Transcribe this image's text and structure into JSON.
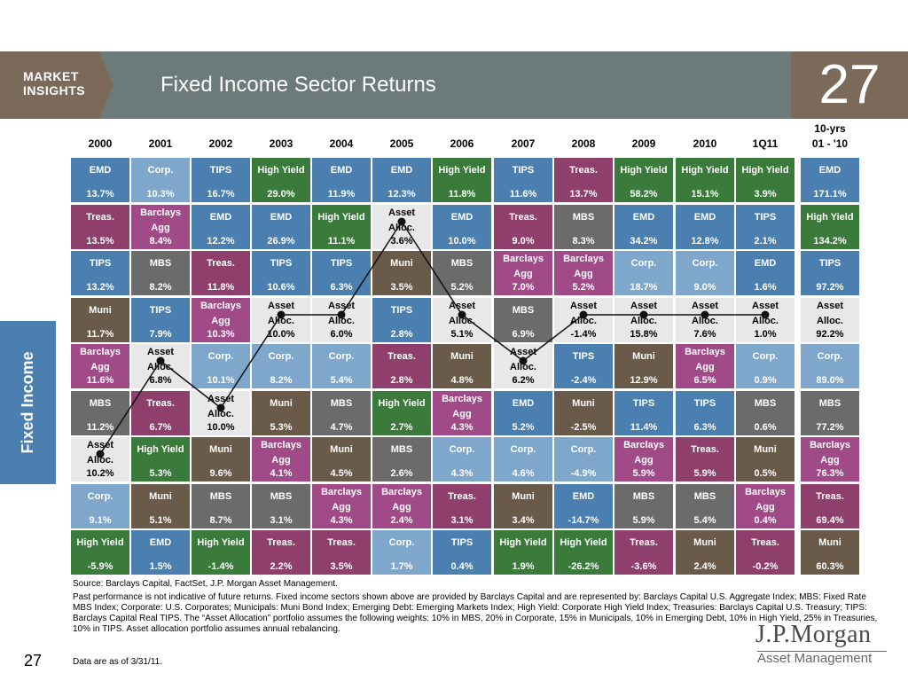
{
  "header": {
    "brand": "MARKET\nINSIGHTS",
    "title": "Fixed Income Sector Returns",
    "page_number": "27"
  },
  "sidebar": {
    "label": "Fixed Income"
  },
  "colors": {
    "EMD": "#4a7fb0",
    "Corp.": "#7fa7cc",
    "TIPS": "#4a7fb0",
    "High Yield": "#3a7a3a",
    "Treas.": "#8e3f6c",
    "Barclays Agg": "#a04a88",
    "MBS": "#6b6b6b",
    "Muni": "#6a5a4a",
    "Asset Alloc.": "#e8e8e8"
  },
  "chart_data": {
    "type": "table",
    "title": "Fixed Income Sector Returns",
    "columns": [
      "2000",
      "2001",
      "2002",
      "2003",
      "2004",
      "2005",
      "2006",
      "2007",
      "2008",
      "2009",
      "2010",
      "1Q11",
      "10-yrs\n01 - '10"
    ],
    "ranks": [
      [
        {
          "s": "EMD",
          "v": "13.7%"
        },
        {
          "s": "Corp.",
          "v": "10.3%"
        },
        {
          "s": "TIPS",
          "v": "16.7%"
        },
        {
          "s": "High Yield",
          "v": "29.0%"
        },
        {
          "s": "EMD",
          "v": "11.9%"
        },
        {
          "s": "EMD",
          "v": "12.3%"
        },
        {
          "s": "High Yield",
          "v": "11.8%"
        },
        {
          "s": "TIPS",
          "v": "11.6%"
        },
        {
          "s": "Treas.",
          "v": "13.7%"
        },
        {
          "s": "High Yield",
          "v": "58.2%"
        },
        {
          "s": "High Yield",
          "v": "15.1%"
        },
        {
          "s": "High Yield",
          "v": "3.9%"
        },
        {
          "s": "EMD",
          "v": "171.1%"
        }
      ],
      [
        {
          "s": "Treas.",
          "v": "13.5%"
        },
        {
          "s": "Barclays Agg",
          "v": "8.4%"
        },
        {
          "s": "EMD",
          "v": "12.2%"
        },
        {
          "s": "EMD",
          "v": "26.9%"
        },
        {
          "s": "High Yield",
          "v": "11.1%"
        },
        {
          "s": "Asset Alloc.",
          "v": "3.6%"
        },
        {
          "s": "EMD",
          "v": "10.0%"
        },
        {
          "s": "Treas.",
          "v": "9.0%"
        },
        {
          "s": "MBS",
          "v": "8.3%"
        },
        {
          "s": "EMD",
          "v": "34.2%"
        },
        {
          "s": "EMD",
          "v": "12.8%"
        },
        {
          "s": "TIPS",
          "v": "2.1%"
        },
        {
          "s": "High Yield",
          "v": "134.2%"
        }
      ],
      [
        {
          "s": "TIPS",
          "v": "13.2%"
        },
        {
          "s": "MBS",
          "v": "8.2%"
        },
        {
          "s": "Treas.",
          "v": "11.8%"
        },
        {
          "s": "TIPS",
          "v": "10.6%"
        },
        {
          "s": "TIPS",
          "v": "6.3%"
        },
        {
          "s": "Muni",
          "v": "3.5%"
        },
        {
          "s": "MBS",
          "v": "5.2%"
        },
        {
          "s": "Barclays Agg",
          "v": "7.0%"
        },
        {
          "s": "Barclays Agg",
          "v": "5.2%"
        },
        {
          "s": "Corp.",
          "v": "18.7%"
        },
        {
          "s": "Corp.",
          "v": "9.0%"
        },
        {
          "s": "EMD",
          "v": "1.6%"
        },
        {
          "s": "TIPS",
          "v": "97.2%"
        }
      ],
      [
        {
          "s": "Muni",
          "v": "11.7%"
        },
        {
          "s": "TIPS",
          "v": "7.9%"
        },
        {
          "s": "Barclays Agg",
          "v": "10.3%"
        },
        {
          "s": "Asset Alloc.",
          "v": "10.0%"
        },
        {
          "s": "Asset Alloc.",
          "v": "6.0%"
        },
        {
          "s": "TIPS",
          "v": "2.8%"
        },
        {
          "s": "Asset Alloc.",
          "v": "5.1%"
        },
        {
          "s": "MBS",
          "v": "6.9%"
        },
        {
          "s": "Asset Alloc.",
          "v": "-1.4%"
        },
        {
          "s": "Asset Alloc.",
          "v": "15.8%"
        },
        {
          "s": "Asset Alloc.",
          "v": "7.6%"
        },
        {
          "s": "Asset Alloc.",
          "v": "1.0%"
        },
        {
          "s": "Asset Alloc.",
          "v": "92.2%"
        }
      ],
      [
        {
          "s": "Barclays Agg",
          "v": "11.6%"
        },
        {
          "s": "Asset Alloc.",
          "v": "6.8%"
        },
        {
          "s": "Corp.",
          "v": "10.1%"
        },
        {
          "s": "Corp.",
          "v": "8.2%"
        },
        {
          "s": "Corp.",
          "v": "5.4%"
        },
        {
          "s": "Treas.",
          "v": "2.8%"
        },
        {
          "s": "Muni",
          "v": "4.8%"
        },
        {
          "s": "Asset Alloc.",
          "v": "6.2%"
        },
        {
          "s": "TIPS",
          "v": "-2.4%"
        },
        {
          "s": "Muni",
          "v": "12.9%"
        },
        {
          "s": "Barclays Agg",
          "v": "6.5%"
        },
        {
          "s": "Corp.",
          "v": "0.9%"
        },
        {
          "s": "Corp.",
          "v": "89.0%"
        }
      ],
      [
        {
          "s": "MBS",
          "v": "11.2%"
        },
        {
          "s": "Treas.",
          "v": "6.7%"
        },
        {
          "s": "Asset Alloc.",
          "v": "10.0%"
        },
        {
          "s": "Muni",
          "v": "5.3%"
        },
        {
          "s": "MBS",
          "v": "4.7%"
        },
        {
          "s": "High Yield",
          "v": "2.7%"
        },
        {
          "s": "Barclays Agg",
          "v": "4.3%"
        },
        {
          "s": "EMD",
          "v": "5.2%"
        },
        {
          "s": "Muni",
          "v": "-2.5%"
        },
        {
          "s": "TIPS",
          "v": "11.4%"
        },
        {
          "s": "TIPS",
          "v": "6.3%"
        },
        {
          "s": "MBS",
          "v": "0.6%"
        },
        {
          "s": "MBS",
          "v": "77.2%"
        }
      ],
      [
        {
          "s": "Asset Alloc.",
          "v": "10.2%"
        },
        {
          "s": "High Yield",
          "v": "5.3%"
        },
        {
          "s": "Muni",
          "v": "9.6%"
        },
        {
          "s": "Barclays Agg",
          "v": "4.1%"
        },
        {
          "s": "Muni",
          "v": "4.5%"
        },
        {
          "s": "MBS",
          "v": "2.6%"
        },
        {
          "s": "Corp.",
          "v": "4.3%"
        },
        {
          "s": "Corp.",
          "v": "4.6%"
        },
        {
          "s": "Corp.",
          "v": "-4.9%"
        },
        {
          "s": "Barclays Agg",
          "v": "5.9%"
        },
        {
          "s": "Treas.",
          "v": "5.9%"
        },
        {
          "s": "Muni",
          "v": "0.5%"
        },
        {
          "s": "Barclays Agg",
          "v": "76.3%"
        }
      ],
      [
        {
          "s": "Corp.",
          "v": "9.1%"
        },
        {
          "s": "Muni",
          "v": "5.1%"
        },
        {
          "s": "MBS",
          "v": "8.7%"
        },
        {
          "s": "MBS",
          "v": "3.1%"
        },
        {
          "s": "Barclays Agg",
          "v": "4.3%"
        },
        {
          "s": "Barclays Agg",
          "v": "2.4%"
        },
        {
          "s": "Treas.",
          "v": "3.1%"
        },
        {
          "s": "Muni",
          "v": "3.4%"
        },
        {
          "s": "EMD",
          "v": "-14.7%"
        },
        {
          "s": "MBS",
          "v": "5.9%"
        },
        {
          "s": "MBS",
          "v": "5.4%"
        },
        {
          "s": "Barclays Agg",
          "v": "0.4%"
        },
        {
          "s": "Treas.",
          "v": "69.4%"
        }
      ],
      [
        {
          "s": "High Yield",
          "v": "-5.9%"
        },
        {
          "s": "EMD",
          "v": "1.5%"
        },
        {
          "s": "High Yield",
          "v": "-1.4%"
        },
        {
          "s": "Treas.",
          "v": "2.2%"
        },
        {
          "s": "Treas.",
          "v": "3.5%"
        },
        {
          "s": "Corp.",
          "v": "1.7%"
        },
        {
          "s": "TIPS",
          "v": "0.4%"
        },
        {
          "s": "High Yield",
          "v": "1.9%"
        },
        {
          "s": "High Yield",
          "v": "-26.2%"
        },
        {
          "s": "Treas.",
          "v": "-3.6%"
        },
        {
          "s": "Muni",
          "v": "2.4%"
        },
        {
          "s": "Treas.",
          "v": "-0.2%"
        },
        {
          "s": "Muni",
          "v": "60.3%"
        }
      ]
    ]
  },
  "footer": {
    "source": "Source: Barclays Capital, FactSet, J.P. Morgan Asset Management.",
    "notes": "Past performance is not indicative of future returns. Fixed income sectors shown above are provided by Barclays Capital and are represented by: Barclays Capital U.S. Aggregate Index; MBS: Fixed Rate MBS Index; Corporate: U.S. Corporates; Municipals: Muni Bond Index; Emerging Debt: Emerging Markets Index; High Yield: Corporate High Yield Index; Treasuries: Barclays Capital U.S. Treasury; TIPS: Barclays Capital Real TIPS. The “Asset Allocation” portfolio assumes the following weights: 10% in MBS, 20% in Corporate, 15% in Municipals, 10% in Emerging Debt, 10% in High Yield, 25% in Treasuries, 10% in TIPS. Asset allocation portfolio assumes annual rebalancing.",
    "as_of": "Data are as of 3/31/11.",
    "page_number": "27",
    "logo_main": "J.P.Morgan",
    "logo_sub": "Asset Management"
  }
}
